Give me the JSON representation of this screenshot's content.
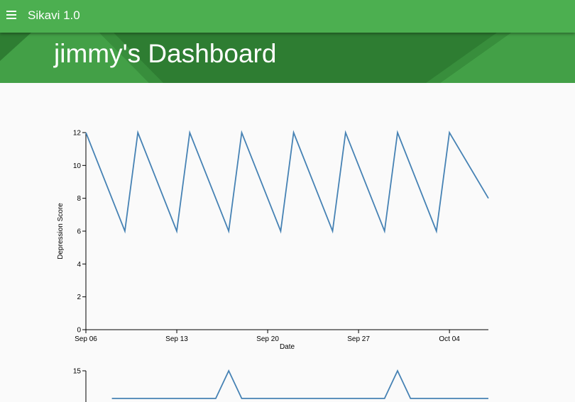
{
  "app": {
    "title": "Sikavi 1.0",
    "menu_icon": "hamburger-menu-icon"
  },
  "banner": {
    "title": "jimmy's Dashboard"
  },
  "colors": {
    "appbar": "#4caf50",
    "banner": "#2e7d32",
    "banner_light": "#43a047",
    "line": "#4682b4"
  },
  "chart_data": [
    {
      "type": "line",
      "title": "",
      "xlabel": "Date",
      "ylabel": "Depression Score",
      "xlim": [
        "2015-09-06",
        "2015-10-07"
      ],
      "ylim": [
        0,
        12
      ],
      "x_ticks": [
        "Sep 06",
        "Sep 13",
        "Sep 20",
        "Sep 27",
        "Oct 04"
      ],
      "y_ticks": [
        0,
        2,
        4,
        6,
        8,
        10,
        12
      ],
      "grid": false,
      "series": [
        {
          "x": [
            "2015-09-06",
            "2015-09-09",
            "2015-09-10",
            "2015-09-13",
            "2015-09-14",
            "2015-09-17",
            "2015-09-18",
            "2015-09-21",
            "2015-09-22",
            "2015-09-25",
            "2015-09-26",
            "2015-09-29",
            "2015-09-30",
            "2015-10-03",
            "2015-10-04",
            "2015-10-07"
          ],
          "y": [
            12,
            6,
            12,
            6,
            12,
            6,
            12,
            6,
            12,
            6,
            12,
            6,
            12,
            6,
            12,
            8
          ]
        }
      ]
    },
    {
      "type": "line",
      "title": "",
      "xlabel": "",
      "ylabel": "",
      "xlim": [
        "2015-09-06",
        "2015-10-07"
      ],
      "y_ticks": [
        15
      ],
      "grid": false,
      "series": [
        {
          "x": [
            "2015-09-08",
            "2015-09-10",
            "2015-09-16",
            "2015-09-17",
            "2015-09-18",
            "2015-09-21",
            "2015-09-23",
            "2015-09-29",
            "2015-09-30",
            "2015-10-01",
            "2015-10-05",
            "2015-10-07"
          ],
          "y": [
            10,
            10,
            10,
            15,
            10,
            10,
            10,
            10,
            15,
            10,
            10,
            10
          ]
        }
      ]
    }
  ]
}
